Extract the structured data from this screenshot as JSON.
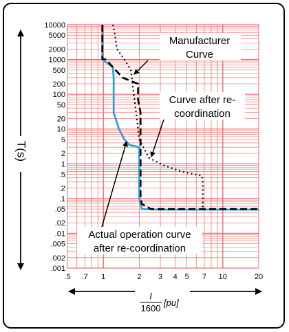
{
  "chart_data": {
    "type": "line",
    "title": "",
    "xlabel": {
      "numerator": "I",
      "denominator": "1600",
      "unit": "[pu]"
    },
    "ylabel": "T(s)",
    "xscale": "log",
    "yscale": "log",
    "xlim": [
      0.5,
      20
    ],
    "ylim": [
      0.001,
      10000
    ],
    "x_ticks": [
      ".5",
      ".7",
      "1",
      "2",
      "3",
      "4",
      "5",
      "7",
      "10",
      "20"
    ],
    "x_tick_values": [
      0.5,
      0.7,
      1,
      2,
      3,
      4,
      5,
      7,
      10,
      20
    ],
    "y_ticks": [
      "10000",
      "5000",
      "2000",
      "1000",
      "500",
      "200",
      "100",
      "50",
      "20",
      "10",
      "5",
      "2",
      "1",
      ".5",
      ".2",
      ".1",
      ".05",
      ".02",
      ".01",
      ".005",
      ".002",
      ".001"
    ],
    "y_tick_values": [
      10000,
      5000,
      2000,
      1000,
      500,
      200,
      100,
      50,
      20,
      10,
      5,
      2,
      1,
      0.5,
      0.2,
      0.1,
      0.05,
      0.02,
      0.01,
      0.005,
      0.002,
      0.001
    ],
    "grid": true,
    "series": [
      {
        "name": "Manufacturer Curve",
        "style": "dashed",
        "color": "#000000",
        "x": [
          0.98,
          0.98,
          1.05,
          1.45,
          1.95,
          1.95,
          2.05,
          2.05,
          2.1,
          2.5,
          20
        ],
        "y": [
          10000,
          1050,
          1000,
          300,
          200,
          70,
          30,
          0.1,
          0.07,
          0.05,
          0.05
        ]
      },
      {
        "name": "Curve after re-coordination",
        "style": "dotted",
        "color": "#000000",
        "x": [
          1.2,
          1.25,
          1.3,
          1.5,
          1.7,
          2.0,
          2.4,
          3.2,
          4.5,
          6.7,
          6.8,
          6.8
        ],
        "y": [
          10000,
          5000,
          2000,
          1000,
          500,
          5,
          1.5,
          0.9,
          0.6,
          0.45,
          0.3,
          0.05
        ]
      },
      {
        "name": "Actual operation curve after re-coordination",
        "style": "solid",
        "color": "#29a3d9",
        "x": [
          0.98,
          0.98,
          1.2,
          1.22,
          1.22,
          1.35,
          1.5,
          1.65,
          2.0,
          2.0,
          2.1,
          2.9,
          20
        ],
        "y": [
          10000,
          1000,
          600,
          300,
          30,
          10,
          5,
          3.5,
          3,
          0.1,
          0.05,
          0.048,
          0.048
        ]
      }
    ],
    "annotations": [
      "Manufacturer Curve",
      "Curve after re-coordination",
      "Actual operation curve after re-coordination"
    ]
  },
  "annotations": {
    "manufacturer": [
      "Manufacturer",
      "Curve"
    ],
    "re_coordination": [
      "Curve after re-",
      "coordination"
    ],
    "actual": [
      "Actual operation curve",
      "after re-coordination"
    ]
  },
  "colors": {
    "grid": "#f07070",
    "actual": "#29a3d9",
    "frame": "#000000"
  }
}
